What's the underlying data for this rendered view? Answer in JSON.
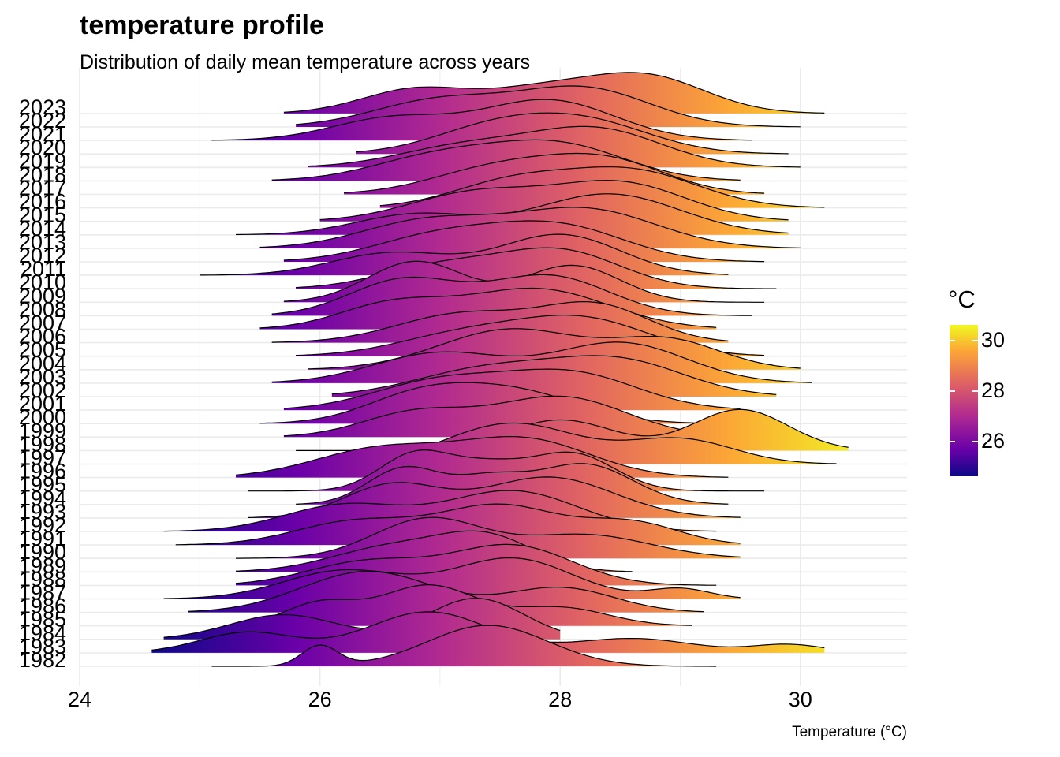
{
  "chart_data": {
    "type": "ridgeline",
    "title": "temperature profile",
    "subtitle": "Distribution of daily mean temperature across years",
    "xlabel": "Temperature (°C)",
    "ylabel": "",
    "xlim": [
      24,
      30.9
    ],
    "x_ticks": [
      24,
      26,
      28,
      30
    ],
    "grid": true,
    "legend": {
      "title": "°C",
      "position": "right",
      "ticks": [
        26,
        28,
        30
      ],
      "range": [
        24.6,
        30.6
      ],
      "palette": "plasma",
      "colors": [
        "#0d0887",
        "#6a00a8",
        "#b12a90",
        "#e16462",
        "#fca636",
        "#f0f921"
      ]
    },
    "series": [
      {
        "name": "1982",
        "min": 25.1,
        "max": 29.3,
        "modes": [
          [
            26.0,
            0.15,
            0.5
          ],
          [
            27.4,
            0.5,
            1.0
          ]
        ]
      },
      {
        "name": "1983",
        "min": 24.6,
        "max": 30.2,
        "modes": [
          [
            25.4,
            0.4,
            0.5
          ],
          [
            26.9,
            0.5,
            1.0
          ],
          [
            28.6,
            0.5,
            0.35
          ],
          [
            29.9,
            0.3,
            0.2
          ]
        ]
      },
      {
        "name": "1984",
        "min": 24.7,
        "max": 28.0,
        "modes": [
          [
            25.7,
            0.45,
            0.6
          ],
          [
            27.3,
            0.4,
            1.0
          ]
        ]
      },
      {
        "name": "1985",
        "min": 25.2,
        "max": 29.1,
        "modes": [
          [
            26.0,
            0.3,
            0.55
          ],
          [
            26.9,
            0.4,
            1.0
          ],
          [
            28.0,
            0.4,
            0.45
          ]
        ]
      },
      {
        "name": "1986",
        "min": 24.9,
        "max": 29.2,
        "modes": [
          [
            26.4,
            0.55,
            1.0
          ],
          [
            28.0,
            0.45,
            0.6
          ]
        ]
      },
      {
        "name": "1987",
        "min": 24.7,
        "max": 29.5,
        "modes": [
          [
            26.2,
            0.5,
            0.7
          ],
          [
            27.6,
            0.5,
            1.0
          ],
          [
            29.0,
            0.25,
            0.25
          ]
        ]
      },
      {
        "name": "1988",
        "min": 25.3,
        "max": 29.3,
        "modes": [
          [
            26.4,
            0.5,
            0.6
          ],
          [
            27.6,
            0.5,
            1.0
          ]
        ]
      },
      {
        "name": "1989",
        "min": 25.3,
        "max": 28.6,
        "modes": [
          [
            26.6,
            0.5,
            0.75
          ],
          [
            27.4,
            0.4,
            1.0
          ]
        ]
      },
      {
        "name": "1990",
        "min": 25.3,
        "max": 29.5,
        "modes": [
          [
            26.9,
            0.45,
            1.0
          ],
          [
            28.2,
            0.55,
            0.6
          ]
        ]
      },
      {
        "name": "1991",
        "min": 24.8,
        "max": 29.5,
        "modes": [
          [
            26.3,
            0.5,
            0.6
          ],
          [
            27.5,
            0.5,
            1.0
          ],
          [
            28.6,
            0.4,
            0.55
          ]
        ]
      },
      {
        "name": "1992",
        "min": 24.7,
        "max": 29.3,
        "modes": [
          [
            26.2,
            0.5,
            0.65
          ],
          [
            27.6,
            0.55,
            1.0
          ]
        ]
      },
      {
        "name": "1993",
        "min": 25.4,
        "max": 29.5,
        "modes": [
          [
            26.6,
            0.4,
            0.8
          ],
          [
            27.9,
            0.55,
            1.0
          ]
        ]
      },
      {
        "name": "1994",
        "min": 25.8,
        "max": 29.4,
        "modes": [
          [
            26.7,
            0.3,
            0.9
          ],
          [
            27.4,
            0.3,
            0.6
          ],
          [
            28.2,
            0.4,
            1.0
          ]
        ]
      },
      {
        "name": "1995",
        "min": 25.4,
        "max": 29.7,
        "modes": [
          [
            26.8,
            0.3,
            1.0
          ],
          [
            27.4,
            0.3,
            0.6
          ],
          [
            28.1,
            0.35,
            1.0
          ]
        ]
      },
      {
        "name": "1996",
        "min": 25.3,
        "max": 29.4,
        "modes": [
          [
            26.5,
            0.55,
            0.75
          ],
          [
            27.7,
            0.55,
            1.0
          ]
        ]
      },
      {
        "name": "1997",
        "min": 26.2,
        "max": 30.3,
        "modes": [
          [
            27.6,
            0.55,
            1.0
          ],
          [
            29.0,
            0.45,
            0.6
          ]
        ]
      },
      {
        "name": "1998",
        "min": 25.8,
        "max": 30.4,
        "modes": [
          [
            28.0,
            0.45,
            0.75
          ],
          [
            29.5,
            0.4,
            1.0
          ]
        ]
      },
      {
        "name": "1999",
        "min": 25.7,
        "max": 29.4,
        "modes": [
          [
            26.8,
            0.45,
            0.6
          ],
          [
            28.0,
            0.55,
            1.0
          ]
        ]
      },
      {
        "name": "2000",
        "min": 25.5,
        "max": 29.5,
        "modes": [
          [
            26.8,
            0.45,
            0.75
          ],
          [
            27.6,
            0.55,
            1.0
          ]
        ]
      },
      {
        "name": "2001",
        "min": 25.7,
        "max": 29.5,
        "modes": [
          [
            27.0,
            0.55,
            0.8
          ],
          [
            28.1,
            0.55,
            1.0
          ]
        ]
      },
      {
        "name": "2002",
        "min": 26.1,
        "max": 29.8,
        "modes": [
          [
            27.4,
            0.6,
            0.8
          ],
          [
            28.5,
            0.55,
            1.0
          ]
        ]
      },
      {
        "name": "2003",
        "min": 25.6,
        "max": 30.1,
        "modes": [
          [
            27.0,
            0.55,
            0.75
          ],
          [
            28.5,
            0.55,
            1.0
          ]
        ]
      },
      {
        "name": "2004",
        "min": 25.9,
        "max": 30.0,
        "modes": [
          [
            27.6,
            0.6,
            1.0
          ],
          [
            28.9,
            0.45,
            0.7
          ]
        ]
      },
      {
        "name": "2005",
        "min": 25.8,
        "max": 29.7,
        "modes": [
          [
            27.2,
            0.55,
            0.6
          ],
          [
            28.2,
            0.55,
            1.0
          ]
        ]
      },
      {
        "name": "2006",
        "min": 25.6,
        "max": 29.4,
        "modes": [
          [
            27.2,
            0.55,
            0.8
          ],
          [
            28.3,
            0.45,
            1.0
          ]
        ]
      },
      {
        "name": "2007",
        "min": 25.5,
        "max": 29.3,
        "modes": [
          [
            26.6,
            0.45,
            0.6
          ],
          [
            27.8,
            0.6,
            1.0
          ]
        ]
      },
      {
        "name": "2008",
        "min": 25.6,
        "max": 29.6,
        "modes": [
          [
            26.7,
            0.45,
            0.9
          ],
          [
            27.9,
            0.5,
            1.0
          ]
        ]
      },
      {
        "name": "2009",
        "min": 25.7,
        "max": 29.7,
        "modes": [
          [
            26.8,
            0.4,
            1.0
          ],
          [
            28.1,
            0.4,
            0.9
          ]
        ]
      },
      {
        "name": "2010",
        "min": 25.8,
        "max": 29.8,
        "modes": [
          [
            27.0,
            0.5,
            0.6
          ],
          [
            28.0,
            0.5,
            1.0
          ]
        ]
      },
      {
        "name": "2011",
        "min": 25.0,
        "max": 29.4,
        "modes": [
          [
            26.6,
            0.5,
            0.55
          ],
          [
            28.0,
            0.5,
            1.0
          ]
        ]
      },
      {
        "name": "2012",
        "min": 25.7,
        "max": 29.7,
        "modes": [
          [
            27.0,
            0.55,
            0.75
          ],
          [
            28.0,
            0.55,
            1.0
          ]
        ]
      },
      {
        "name": "2013",
        "min": 25.5,
        "max": 30.0,
        "modes": [
          [
            26.9,
            0.55,
            0.7
          ],
          [
            28.2,
            0.6,
            1.0
          ]
        ]
      },
      {
        "name": "2014",
        "min": 25.3,
        "max": 29.9,
        "modes": [
          [
            26.8,
            0.5,
            0.5
          ],
          [
            28.4,
            0.6,
            1.0
          ]
        ]
      },
      {
        "name": "2015",
        "min": 26.0,
        "max": 29.9,
        "modes": [
          [
            27.3,
            0.55,
            0.75
          ],
          [
            28.5,
            0.55,
            1.0
          ]
        ]
      },
      {
        "name": "2016",
        "min": 26.5,
        "max": 30.2,
        "modes": [
          [
            27.6,
            0.5,
            0.7
          ],
          [
            28.6,
            0.55,
            1.0
          ]
        ]
      },
      {
        "name": "2017",
        "min": 26.2,
        "max": 29.7,
        "modes": [
          [
            27.5,
            0.55,
            0.85
          ],
          [
            28.4,
            0.5,
            1.0
          ]
        ]
      },
      {
        "name": "2018",
        "min": 25.6,
        "max": 29.5,
        "modes": [
          [
            27.0,
            0.55,
            0.7
          ],
          [
            28.0,
            0.55,
            1.0
          ]
        ]
      },
      {
        "name": "2019",
        "min": 25.9,
        "max": 30.0,
        "modes": [
          [
            27.2,
            0.55,
            0.55
          ],
          [
            28.3,
            0.55,
            1.0
          ]
        ]
      },
      {
        "name": "2020",
        "min": 26.3,
        "max": 29.9,
        "modes": [
          [
            27.4,
            0.5,
            0.7
          ],
          [
            28.2,
            0.55,
            1.0
          ]
        ]
      },
      {
        "name": "2021",
        "min": 25.1,
        "max": 29.6,
        "modes": [
          [
            26.6,
            0.5,
            0.55
          ],
          [
            27.9,
            0.55,
            1.0
          ]
        ]
      },
      {
        "name": "2022",
        "min": 25.8,
        "max": 30.0,
        "modes": [
          [
            27.0,
            0.55,
            0.7
          ],
          [
            28.2,
            0.55,
            1.0
          ]
        ]
      },
      {
        "name": "2023",
        "min": 25.7,
        "max": 30.2,
        "modes": [
          [
            26.8,
            0.45,
            0.65
          ],
          [
            27.8,
            0.45,
            0.55
          ],
          [
            28.7,
            0.5,
            1.0
          ]
        ]
      }
    ]
  }
}
